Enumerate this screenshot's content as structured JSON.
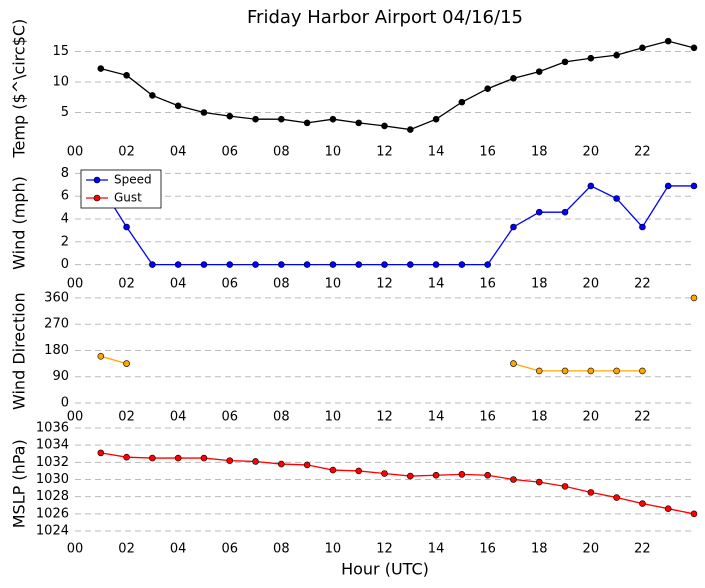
{
  "chart_data": [
    {
      "type": "line",
      "title": "Friday Harbor Airport 04/16/15",
      "ylabel": "Temp ($^\\circ$C)",
      "x": [
        1,
        2,
        3,
        4,
        5,
        6,
        7,
        8,
        9,
        10,
        11,
        12,
        13,
        14,
        15,
        16,
        17,
        18,
        19,
        20,
        21,
        22,
        23,
        24
      ],
      "series": [
        {
          "name": "Temp",
          "color": "#000000",
          "values": [
            12.2,
            11.1,
            7.8,
            6.1,
            5.0,
            4.4,
            3.9,
            3.9,
            3.3,
            3.9,
            3.3,
            2.8,
            2.2,
            3.9,
            6.7,
            8.9,
            10.6,
            11.7,
            13.3,
            13.9,
            14.4,
            15.6,
            16.7,
            15.6
          ]
        }
      ],
      "xlim": [
        0,
        24
      ],
      "xticks": [
        {
          "value": 0,
          "label": "00"
        },
        {
          "value": 2,
          "label": "02"
        },
        {
          "value": 4,
          "label": "04"
        },
        {
          "value": 6,
          "label": "06"
        },
        {
          "value": 8,
          "label": "08"
        },
        {
          "value": 10,
          "label": "10"
        },
        {
          "value": 12,
          "label": "12"
        },
        {
          "value": 14,
          "label": "14"
        },
        {
          "value": 16,
          "label": "16"
        },
        {
          "value": 18,
          "label": "18"
        },
        {
          "value": 20,
          "label": "20"
        },
        {
          "value": 22,
          "label": "22"
        }
      ],
      "ylim": [
        0,
        18
      ],
      "yticks": [
        5,
        10,
        15
      ],
      "grid": true
    },
    {
      "type": "line",
      "ylabel": "Wind (mph)",
      "x": [
        1,
        2,
        3,
        4,
        5,
        6,
        7,
        8,
        9,
        10,
        11,
        12,
        13,
        14,
        15,
        16,
        17,
        18,
        19,
        20,
        21,
        22,
        23,
        24
      ],
      "series": [
        {
          "name": "Speed",
          "color": "#0000ff",
          "values": [
            6.9,
            3.3,
            0,
            0,
            0,
            0,
            0,
            0,
            0,
            0,
            0,
            0,
            0,
            0,
            0,
            0,
            3.3,
            4.6,
            4.6,
            6.9,
            5.8,
            3.3,
            6.9,
            6.9
          ]
        },
        {
          "name": "Gust",
          "color": "#ff0000",
          "values": [
            null,
            null,
            null,
            null,
            null,
            null,
            null,
            null,
            null,
            null,
            null,
            null,
            null,
            null,
            null,
            null,
            null,
            null,
            null,
            null,
            null,
            null,
            null,
            null
          ]
        }
      ],
      "xlim": [
        0,
        24
      ],
      "xticks": [
        {
          "value": 0,
          "label": "00"
        },
        {
          "value": 2,
          "label": "02"
        },
        {
          "value": 4,
          "label": "04"
        },
        {
          "value": 6,
          "label": "06"
        },
        {
          "value": 8,
          "label": "08"
        },
        {
          "value": 10,
          "label": "10"
        },
        {
          "value": 12,
          "label": "12"
        },
        {
          "value": 14,
          "label": "14"
        },
        {
          "value": 16,
          "label": "16"
        },
        {
          "value": 18,
          "label": "18"
        },
        {
          "value": 20,
          "label": "20"
        },
        {
          "value": 22,
          "label": "22"
        }
      ],
      "ylim": [
        -1,
        8.3
      ],
      "yticks": [
        0,
        2,
        4,
        6,
        8
      ],
      "grid": true,
      "legend": "upper left"
    },
    {
      "type": "line",
      "ylabel": "Wind Direction",
      "x": [
        1,
        2,
        3,
        4,
        5,
        6,
        7,
        8,
        9,
        10,
        11,
        12,
        13,
        14,
        15,
        16,
        17,
        18,
        19,
        20,
        21,
        22,
        23,
        24
      ],
      "series": [
        {
          "name": "Direction",
          "color": "#ffa500",
          "values": [
            160,
            135,
            null,
            null,
            null,
            null,
            null,
            null,
            null,
            null,
            null,
            null,
            null,
            null,
            null,
            null,
            135,
            110,
            110,
            110,
            110,
            110,
            null,
            360
          ]
        }
      ],
      "xlim": [
        0,
        24
      ],
      "xticks": [
        {
          "value": 0,
          "label": "00"
        },
        {
          "value": 2,
          "label": "02"
        },
        {
          "value": 4,
          "label": "04"
        },
        {
          "value": 6,
          "label": "06"
        },
        {
          "value": 8,
          "label": "08"
        },
        {
          "value": 10,
          "label": "10"
        },
        {
          "value": 12,
          "label": "12"
        },
        {
          "value": 14,
          "label": "14"
        },
        {
          "value": 16,
          "label": "16"
        },
        {
          "value": 18,
          "label": "18"
        },
        {
          "value": 20,
          "label": "20"
        },
        {
          "value": 22,
          "label": "22"
        }
      ],
      "ylim": [
        -15,
        370
      ],
      "yticks": [
        0,
        90,
        180,
        270,
        360
      ],
      "grid": true
    },
    {
      "type": "line",
      "ylabel": "MSLP (hPa)",
      "xlabel": "Hour (UTC)",
      "x": [
        1,
        2,
        3,
        4,
        5,
        6,
        7,
        8,
        9,
        10,
        11,
        12,
        13,
        14,
        15,
        16,
        17,
        18,
        19,
        20,
        21,
        22,
        23,
        24
      ],
      "series": [
        {
          "name": "MSLP",
          "color": "#ff0000",
          "values": [
            1033.1,
            1032.6,
            1032.5,
            1032.5,
            1032.5,
            1032.2,
            1032.1,
            1031.8,
            1031.7,
            1031.1,
            1031.0,
            1030.7,
            1030.4,
            1030.5,
            1030.6,
            1030.5,
            1030.0,
            1029.7,
            1029.2,
            1028.5,
            1027.9,
            1027.2,
            1026.6,
            1026.0
          ]
        }
      ],
      "xlim": [
        0,
        24
      ],
      "xticks": [
        {
          "value": 0,
          "label": "00"
        },
        {
          "value": 2,
          "label": "02"
        },
        {
          "value": 4,
          "label": "04"
        },
        {
          "value": 6,
          "label": "06"
        },
        {
          "value": 8,
          "label": "08"
        },
        {
          "value": 10,
          "label": "10"
        },
        {
          "value": 12,
          "label": "12"
        },
        {
          "value": 14,
          "label": "14"
        },
        {
          "value": 16,
          "label": "16"
        },
        {
          "value": 18,
          "label": "18"
        },
        {
          "value": 20,
          "label": "20"
        },
        {
          "value": 22,
          "label": "22"
        }
      ],
      "ylim": [
        1023,
        1036
      ],
      "yticks": [
        1024,
        1026,
        1028,
        1030,
        1032,
        1034,
        1036
      ],
      "grid": true
    }
  ]
}
